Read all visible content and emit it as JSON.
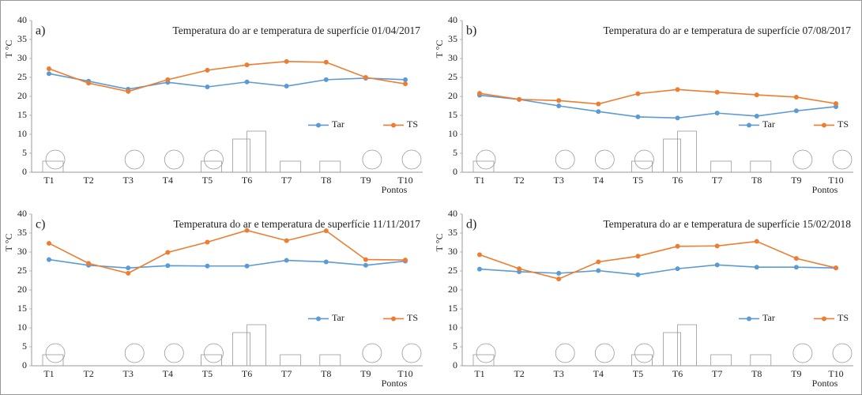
{
  "chart_data": [
    {
      "type": "line",
      "panel": "a)",
      "title": "Temperatura do ar e temperatura de superfície 01/04/2017",
      "y_label": "T °C",
      "x_label": "Pontos",
      "categories": [
        "T1",
        "T2",
        "T3",
        "T4",
        "T5",
        "T6",
        "T7",
        "T8",
        "T9",
        "T10"
      ],
      "series": [
        {
          "name": "Tar",
          "color": "#5b9bd5",
          "values": [
            26.0,
            24.0,
            21.9,
            23.7,
            22.5,
            23.8,
            22.7,
            24.4,
            24.8,
            24.4
          ]
        },
        {
          "name": "TS",
          "color": "#ed7d31",
          "values": [
            27.3,
            23.5,
            21.3,
            24.4,
            26.9,
            28.3,
            29.2,
            29.0,
            25.0,
            23.3
          ]
        }
      ],
      "ylim": [
        0,
        40
      ],
      "yticks": [
        0,
        5,
        10,
        15,
        20,
        25,
        30,
        35,
        40
      ],
      "grid": false,
      "legend": "right"
    },
    {
      "type": "line",
      "panel": "b)",
      "title": "Temperatura do ar e temperatura de superfície 07/08/2017",
      "y_label": "T °C",
      "x_label": "Pontos",
      "categories": [
        "T1",
        "T2",
        "T3",
        "T4",
        "T5",
        "T6",
        "T7",
        "T8",
        "T9",
        "T10"
      ],
      "series": [
        {
          "name": "Tar",
          "color": "#5b9bd5",
          "values": [
            20.3,
            19.2,
            17.5,
            16.0,
            14.6,
            14.3,
            15.6,
            14.8,
            16.2,
            17.3
          ]
        },
        {
          "name": "TS",
          "color": "#ed7d31",
          "values": [
            20.8,
            19.2,
            18.9,
            18.0,
            20.7,
            21.8,
            21.1,
            20.4,
            19.8,
            18.1
          ]
        }
      ],
      "ylim": [
        0,
        40
      ],
      "yticks": [
        0,
        5,
        10,
        15,
        20,
        25,
        30,
        35,
        40
      ],
      "grid": false,
      "legend": "right"
    },
    {
      "type": "line",
      "panel": "c)",
      "title": "Temperatura do ar e temperatura de superfície 11/11/2017",
      "y_label": "T °C",
      "x_label": "Pontos",
      "categories": [
        "T1",
        "T2",
        "T3",
        "T4",
        "T5",
        "T6",
        "T7",
        "T8",
        "T9",
        "T10"
      ],
      "series": [
        {
          "name": "Tar",
          "color": "#5b9bd5",
          "values": [
            28.0,
            26.5,
            25.8,
            26.4,
            26.3,
            26.3,
            27.8,
            27.4,
            26.5,
            27.6
          ]
        },
        {
          "name": "TS",
          "color": "#ed7d31",
          "values": [
            32.3,
            27.0,
            24.4,
            29.9,
            32.6,
            35.7,
            33.0,
            35.6,
            28.0,
            27.9
          ]
        }
      ],
      "ylim": [
        0,
        40
      ],
      "yticks": [
        0,
        5,
        10,
        15,
        20,
        25,
        30,
        35,
        40
      ],
      "grid": false,
      "legend": "right"
    },
    {
      "type": "line",
      "panel": "d)",
      "title": "Temperatura do ar e temperatura de superfície 15/02/2018",
      "y_label": "T °C",
      "x_label": "Pontos",
      "categories": [
        "T1",
        "T2",
        "T3",
        "T4",
        "T5",
        "T6",
        "T7",
        "T8",
        "T9",
        "T10"
      ],
      "series": [
        {
          "name": "Tar",
          "color": "#5b9bd5",
          "values": [
            25.5,
            24.8,
            24.4,
            25.1,
            24.0,
            25.6,
            26.6,
            26.0,
            26.0,
            25.8
          ]
        },
        {
          "name": "TS",
          "color": "#ed7d31",
          "values": [
            29.3,
            25.6,
            22.9,
            27.4,
            28.9,
            31.5,
            31.6,
            32.8,
            28.3,
            25.8
          ]
        }
      ],
      "ylim": [
        0,
        40
      ],
      "yticks": [
        0,
        5,
        10,
        15,
        20,
        25,
        30,
        35,
        40
      ],
      "grid": false,
      "legend": "right"
    }
  ]
}
